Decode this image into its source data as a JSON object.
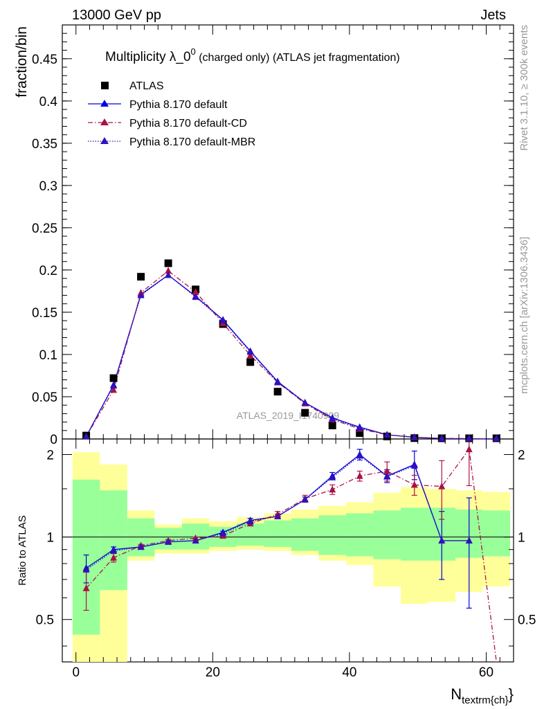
{
  "header": {
    "energy_label": "13000 GeV pp",
    "process_label": "Jets"
  },
  "side_labels": {
    "rivet": "Rivet 3.1.10, ≥ 300k events",
    "mcplots": "mcplots.cern.ch [arXiv:1306.3436]"
  },
  "analysis_id": "ATLAS_2019_I1740909",
  "chart_data": [
    {
      "type": "scatter",
      "title_main": "Multiplicity λ_0",
      "title_sup": "0",
      "title_note": " (charged only) (ATLAS jet fragmentation)",
      "ylabel": "fraction/bin",
      "xlim": [
        -2,
        64
      ],
      "ylim": [
        0,
        0.49
      ],
      "yticks": [
        0,
        0.05,
        0.1,
        0.15,
        0.2,
        0.25,
        0.3,
        0.35,
        0.4,
        0.45
      ],
      "ytick_labels": [
        "0",
        "0.05",
        "0.1",
        "0.15",
        "0.2",
        "0.25",
        "0.3",
        "0.35",
        "0.4",
        "0.45"
      ],
      "legend_position": "top-left",
      "x": [
        1.5,
        5.5,
        9.5,
        13.5,
        17.5,
        21.5,
        25.5,
        29.5,
        33.5,
        37.5,
        41.5,
        45.5,
        49.5,
        53.5,
        57.5,
        61.5
      ],
      "series": [
        {
          "name": "ATLAS",
          "color": "#000000",
          "marker": "square",
          "line": "none",
          "values": [
            0.004,
            0.072,
            0.192,
            0.208,
            0.177,
            0.136,
            0.091,
            0.056,
            0.031,
            0.016,
            0.007,
            0.003,
            0.001,
            0.0005,
            0.0002,
            0.0001
          ]
        },
        {
          "name": "Pythia 8.170 default",
          "color": "#0000dd",
          "marker": "triangle",
          "line": "solid",
          "values": [
            0.003,
            0.064,
            0.171,
            0.194,
            0.169,
            0.141,
            0.104,
            0.068,
            0.043,
            0.025,
            0.014,
            0.005,
            0.002,
            0.0005,
            0.0002,
            0.0
          ]
        },
        {
          "name": "Pythia 8.170 default-CD",
          "color": "#aa1144",
          "marker": "triangle",
          "line": "dashdot",
          "values": [
            0.003,
            0.058,
            0.173,
            0.199,
            0.174,
            0.137,
            0.099,
            0.067,
            0.042,
            0.023,
            0.012,
            0.005,
            0.002,
            0.0008,
            0.0004,
            0.0
          ]
        },
        {
          "name": "Pythia 8.170 default-MBR",
          "color": "#3311bb",
          "marker": "triangle",
          "line": "dotted",
          "values": [
            0.003,
            0.063,
            0.17,
            0.194,
            0.168,
            0.14,
            0.103,
            0.067,
            0.043,
            0.024,
            0.013,
            0.005,
            0.002,
            0.0006,
            0.0002,
            0.0
          ]
        }
      ]
    },
    {
      "type": "line",
      "ylabel": "Ratio to ATLAS",
      "xlabel_main": "N",
      "xlabel_sub": "textrm{ch}",
      "xlim": [
        -2,
        64
      ],
      "ylim": [
        0.35,
        2.28
      ],
      "yticks": [
        0.5,
        1,
        2
      ],
      "ytick_labels": [
        "0.5",
        "1",
        "2"
      ],
      "xticks": [
        0,
        20,
        40,
        60
      ],
      "xtick_labels": [
        "0",
        "20",
        "40",
        "60"
      ],
      "bin_edges": [
        -0.5,
        3.5,
        7.5,
        11.5,
        15.5,
        19.5,
        23.5,
        27.5,
        31.5,
        35.5,
        39.5,
        43.5,
        47.5,
        51.5,
        55.5,
        59.5,
        63.5
      ],
      "band_green": [
        [
          0.44,
          1.62
        ],
        [
          0.64,
          1.48
        ],
        [
          0.85,
          1.17
        ],
        [
          0.9,
          1.08
        ],
        [
          0.9,
          1.12
        ],
        [
          0.92,
          1.09
        ],
        [
          0.93,
          1.12
        ],
        [
          0.92,
          1.15
        ],
        [
          0.89,
          1.17
        ],
        [
          0.86,
          1.2
        ],
        [
          0.85,
          1.22
        ],
        [
          0.83,
          1.25
        ],
        [
          0.82,
          1.28
        ],
        [
          0.82,
          1.28
        ],
        [
          0.84,
          1.26
        ],
        [
          0.85,
          1.25
        ]
      ],
      "band_yellow": [
        [
          0.3,
          2.04
        ],
        [
          0.3,
          1.84
        ],
        [
          0.82,
          1.25
        ],
        [
          0.87,
          1.11
        ],
        [
          0.87,
          1.17
        ],
        [
          0.89,
          1.14
        ],
        [
          0.9,
          1.18
        ],
        [
          0.89,
          1.22
        ],
        [
          0.86,
          1.26
        ],
        [
          0.82,
          1.3
        ],
        [
          0.79,
          1.34
        ],
        [
          0.66,
          1.45
        ],
        [
          0.57,
          1.52
        ],
        [
          0.58,
          1.5
        ],
        [
          0.63,
          1.48
        ],
        [
          0.66,
          1.46
        ]
      ],
      "ratio_series": [
        {
          "name": "Pythia 8.170 default",
          "color": "#0000dd",
          "line": "solid",
          "values": [
            0.77,
            0.9,
            0.92,
            0.96,
            0.97,
            1.04,
            1.15,
            1.19,
            1.37,
            1.67,
            2.0,
            1.67,
            1.84,
            0.97,
            0.97
          ],
          "err": [
            0.09,
            0.02,
            0.01,
            0.01,
            0.01,
            0.01,
            0.02,
            0.02,
            0.03,
            0.05,
            0.09,
            0.09,
            0.22,
            0.27,
            0.42
          ]
        },
        {
          "name": "Pythia 8.170 default-CD",
          "color": "#aa1144",
          "line": "dashdot",
          "values": [
            0.65,
            0.84,
            0.93,
            0.97,
            0.99,
            1.01,
            1.12,
            1.21,
            1.38,
            1.49,
            1.67,
            1.74,
            1.55,
            1.53,
            2.09,
            0.3
          ],
          "err": [
            0.11,
            0.03,
            0.01,
            0.01,
            0.01,
            0.01,
            0.02,
            0.03,
            0.04,
            0.06,
            0.07,
            0.14,
            0.13,
            0.37,
            0.55,
            0.0
          ]
        },
        {
          "name": "Pythia 8.170 default-MBR",
          "color": "#3311bb",
          "line": "dotted",
          "values": [
            0.76,
            0.89,
            0.92,
            0.96,
            0.97,
            1.03,
            1.14,
            1.19,
            1.37,
            1.65,
            1.98,
            1.66,
            1.82,
            0.97,
            0.97
          ],
          "err": [
            0.0,
            0.0,
            0.0,
            0.0,
            0.0,
            0.0,
            0.0,
            0.0,
            0.0,
            0.0,
            0.0,
            0.0,
            0.0,
            0.0,
            0.0
          ]
        }
      ]
    }
  ]
}
